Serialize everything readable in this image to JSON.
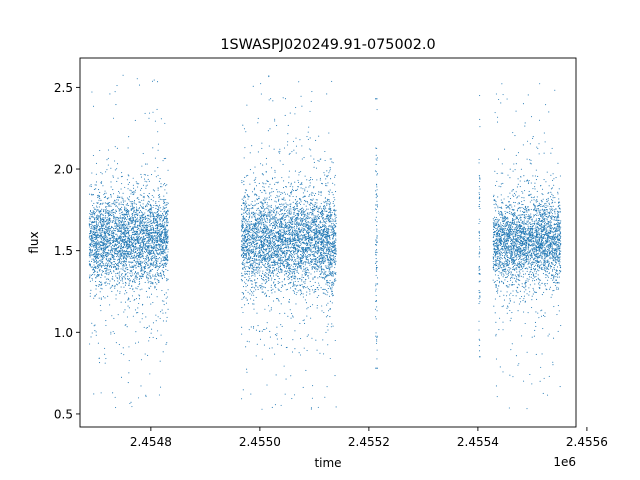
{
  "chart_data": {
    "type": "scatter",
    "title": "1SWASPJ020249.91-075002.0",
    "xlabel": "time",
    "ylabel": "flux",
    "x_offset_label": "1e6",
    "xlim": [
      2454670,
      2455580
    ],
    "ylim": [
      0.42,
      2.68
    ],
    "x_ticks": [
      {
        "value": 2454800,
        "label": "2.4548"
      },
      {
        "value": 2455000,
        "label": "2.4550"
      },
      {
        "value": 2455200,
        "label": "2.4552"
      },
      {
        "value": 2455400,
        "label": "2.4554"
      },
      {
        "value": 2455600,
        "label": "2.4556"
      }
    ],
    "y_ticks": [
      {
        "value": 0.5,
        "label": "0.5"
      },
      {
        "value": 1.0,
        "label": "1.0"
      },
      {
        "value": 1.5,
        "label": "1.5"
      },
      {
        "value": 2.0,
        "label": "2.0"
      },
      {
        "value": 2.5,
        "label": "2.5"
      }
    ],
    "marker_color": "#1f77b4",
    "series": [
      {
        "segments": [
          {
            "x_start": 2454687,
            "x_end": 2454832,
            "median": 1.57,
            "spread": 0.13,
            "outlier_min": 0.53,
            "outlier_max": 2.58
          },
          {
            "x_start": 2454966,
            "x_end": 2455140,
            "median": 1.56,
            "spread": 0.14,
            "outlier_min": 0.52,
            "outlier_max": 2.57
          },
          {
            "x_start": 2455212,
            "x_end": 2455216,
            "median": 1.5,
            "spread": 0.35,
            "outlier_min": 0.78,
            "outlier_max": 2.43
          },
          {
            "x_start": 2455402,
            "x_end": 2455404,
            "median": 1.55,
            "spread": 0.3,
            "outlier_min": 0.85,
            "outlier_max": 2.45
          },
          {
            "x_start": 2455428,
            "x_end": 2455552,
            "median": 1.56,
            "spread": 0.12,
            "outlier_min": 0.52,
            "outlier_max": 2.53
          }
        ]
      }
    ],
    "grid": false,
    "legend": "none"
  }
}
